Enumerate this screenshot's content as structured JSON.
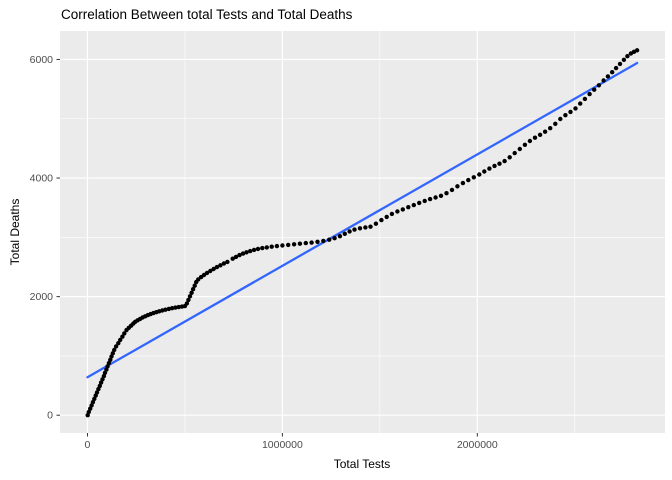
{
  "chart_data": {
    "type": "scatter",
    "title": "Correlation Between total Tests and Total Deaths",
    "xlabel": "Total Tests",
    "ylabel": "Total Deaths",
    "legend_position": "none",
    "grid": "major-and-minor",
    "xlim": [
      -141000,
      2963000
    ],
    "ylim": [
      -300,
      6480
    ],
    "x_ticks": [
      0,
      1000000,
      2000000
    ],
    "x_tick_labels": [
      "0",
      "1000000",
      "2000000"
    ],
    "x_minor_ticks": [
      500000,
      1500000,
      2500000
    ],
    "y_ticks": [
      0,
      2000,
      4000,
      6000
    ],
    "y_tick_labels": [
      "0",
      "2000",
      "4000",
      "6000"
    ],
    "y_minor_ticks": [
      1000,
      3000,
      5000
    ],
    "colors": {
      "panel_bg": "#EBEBEB",
      "grid": "#FFFFFF",
      "points": "#000000",
      "trend_line": "#3366FF",
      "tick_text": "#4D4D4D",
      "tick_mark": "#333333",
      "title_text": "#000000"
    },
    "trend_line": {
      "x1": 0,
      "y1": 640,
      "x2": 2820000,
      "y2": 5940
    },
    "points": [
      [
        1000,
        0
      ],
      [
        7000,
        55
      ],
      [
        14000,
        110
      ],
      [
        21000,
        165
      ],
      [
        28000,
        220
      ],
      [
        35000,
        275
      ],
      [
        42000,
        330
      ],
      [
        49000,
        385
      ],
      [
        56000,
        440
      ],
      [
        63000,
        495
      ],
      [
        70000,
        550
      ],
      [
        77000,
        605
      ],
      [
        84000,
        660
      ],
      [
        90000,
        715
      ],
      [
        97000,
        770
      ],
      [
        103000,
        825
      ],
      [
        110000,
        880
      ],
      [
        117000,
        935
      ],
      [
        123000,
        990
      ],
      [
        130000,
        1045
      ],
      [
        137000,
        1100
      ],
      [
        147000,
        1160
      ],
      [
        158000,
        1215
      ],
      [
        168000,
        1270
      ],
      [
        179000,
        1325
      ],
      [
        189000,
        1380
      ],
      [
        200000,
        1435
      ],
      [
        212000,
        1475
      ],
      [
        224000,
        1510
      ],
      [
        235000,
        1545
      ],
      [
        245000,
        1575
      ],
      [
        257000,
        1600
      ],
      [
        270000,
        1625
      ],
      [
        283000,
        1648
      ],
      [
        296000,
        1668
      ],
      [
        310000,
        1688
      ],
      [
        324000,
        1706
      ],
      [
        338000,
        1722
      ],
      [
        353000,
        1738
      ],
      [
        368000,
        1752
      ],
      [
        384000,
        1766
      ],
      [
        400000,
        1780
      ],
      [
        417000,
        1793
      ],
      [
        434000,
        1805
      ],
      [
        451000,
        1815
      ],
      [
        468000,
        1824
      ],
      [
        485000,
        1832
      ],
      [
        500000,
        1840
      ],
      [
        510000,
        1885
      ],
      [
        518000,
        1945
      ],
      [
        526000,
        2005
      ],
      [
        534000,
        2065
      ],
      [
        542000,
        2125
      ],
      [
        550000,
        2185
      ],
      [
        558000,
        2245
      ],
      [
        568000,
        2290
      ],
      [
        583000,
        2330
      ],
      [
        598000,
        2365
      ],
      [
        613000,
        2398
      ],
      [
        630000,
        2432
      ],
      [
        647000,
        2466
      ],
      [
        664000,
        2498
      ],
      [
        682000,
        2528
      ],
      [
        700000,
        2558
      ],
      [
        718000,
        2585
      ],
      [
        745000,
        2640
      ],
      [
        762000,
        2670
      ],
      [
        780000,
        2700
      ],
      [
        798000,
        2725
      ],
      [
        816000,
        2748
      ],
      [
        835000,
        2768
      ],
      [
        855000,
        2788
      ],
      [
        875000,
        2805
      ],
      [
        897000,
        2818
      ],
      [
        920000,
        2830
      ],
      [
        945000,
        2842
      ],
      [
        972000,
        2852
      ],
      [
        1000000,
        2862
      ],
      [
        1030000,
        2872
      ],
      [
        1060000,
        2882
      ],
      [
        1090000,
        2892
      ],
      [
        1120000,
        2902
      ],
      [
        1150000,
        2912
      ],
      [
        1180000,
        2925
      ],
      [
        1210000,
        2940
      ],
      [
        1240000,
        2960
      ],
      [
        1268000,
        2985
      ],
      [
        1295000,
        3020
      ],
      [
        1320000,
        3060
      ],
      [
        1345000,
        3100
      ],
      [
        1370000,
        3130
      ],
      [
        1398000,
        3152
      ],
      [
        1426000,
        3168
      ],
      [
        1452000,
        3180
      ],
      [
        1480000,
        3230
      ],
      [
        1508000,
        3290
      ],
      [
        1535000,
        3345
      ],
      [
        1562000,
        3395
      ],
      [
        1590000,
        3435
      ],
      [
        1618000,
        3472
      ],
      [
        1646000,
        3508
      ],
      [
        1674000,
        3544
      ],
      [
        1702000,
        3580
      ],
      [
        1730000,
        3615
      ],
      [
        1758000,
        3645
      ],
      [
        1786000,
        3672
      ],
      [
        1814000,
        3700
      ],
      [
        1842000,
        3745
      ],
      [
        1870000,
        3800
      ],
      [
        1898000,
        3860
      ],
      [
        1926000,
        3915
      ],
      [
        1954000,
        3965
      ],
      [
        1982000,
        4012
      ],
      [
        2010000,
        4060
      ],
      [
        2036000,
        4110
      ],
      [
        2062000,
        4160
      ],
      [
        2088000,
        4205
      ],
      [
        2114000,
        4242
      ],
      [
        2140000,
        4285
      ],
      [
        2166000,
        4350
      ],
      [
        2192000,
        4420
      ],
      [
        2218000,
        4490
      ],
      [
        2244000,
        4560
      ],
      [
        2270000,
        4625
      ],
      [
        2296000,
        4680
      ],
      [
        2322000,
        4730
      ],
      [
        2348000,
        4782
      ],
      [
        2374000,
        4840
      ],
      [
        2400000,
        4915
      ],
      [
        2426000,
        4995
      ],
      [
        2452000,
        5060
      ],
      [
        2478000,
        5115
      ],
      [
        2504000,
        5175
      ],
      [
        2528000,
        5255
      ],
      [
        2552000,
        5335
      ],
      [
        2576000,
        5415
      ],
      [
        2600000,
        5490
      ],
      [
        2624000,
        5565
      ],
      [
        2648000,
        5645
      ],
      [
        2670000,
        5715
      ],
      [
        2692000,
        5785
      ],
      [
        2712000,
        5855
      ],
      [
        2732000,
        5925
      ],
      [
        2752000,
        5995
      ],
      [
        2770000,
        6055
      ],
      [
        2788000,
        6100
      ],
      [
        2804000,
        6130
      ],
      [
        2820000,
        6155
      ]
    ]
  }
}
